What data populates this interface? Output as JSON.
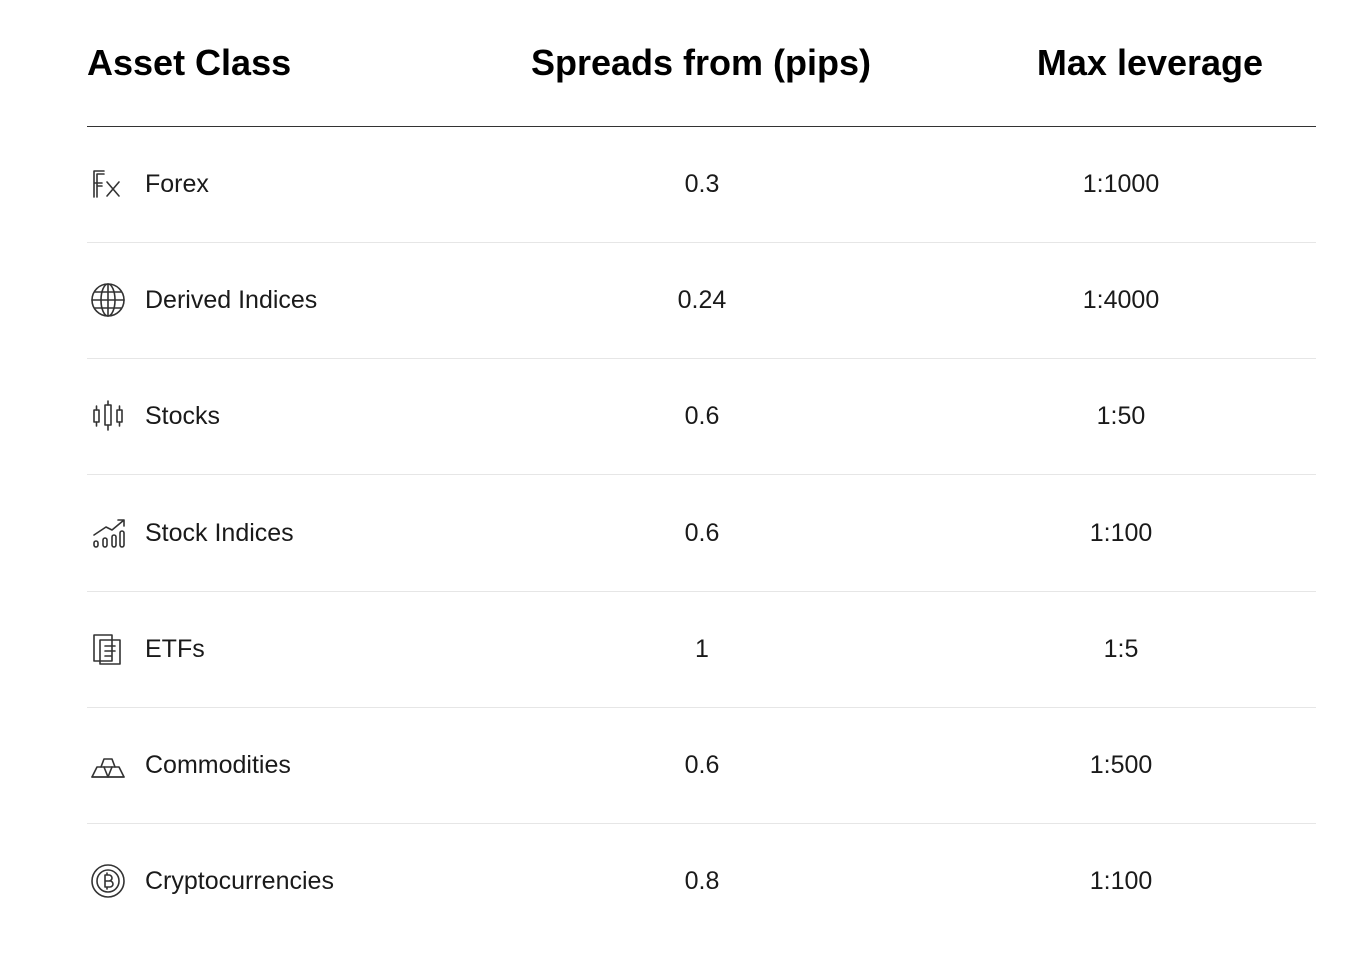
{
  "table": {
    "header": [
      "Asset Class",
      "Spreads from (pips)",
      "Max leverage"
    ],
    "rows": [
      [
        "Forex",
        "0.3",
        "1:1000"
      ],
      [
        "Derived Indices",
        "0.24",
        "1:4000"
      ],
      [
        "Stocks",
        "0.6",
        "1:50"
      ],
      [
        "Stock Indices",
        "0.6",
        "1:100"
      ],
      [
        "ETFs",
        "1",
        "1:5"
      ],
      [
        "Commodities",
        "0.6",
        "1:500"
      ],
      [
        "Cryptocurrencies",
        "0.8",
        "1:100"
      ]
    ]
  }
}
